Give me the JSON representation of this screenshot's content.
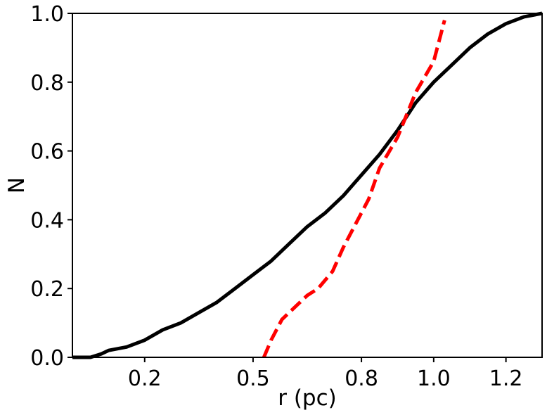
{
  "chart_data": {
    "type": "line",
    "title": "",
    "xlabel": "r (pc)",
    "ylabel": "N",
    "xlim": [
      0.0,
      1.3
    ],
    "ylim": [
      0.0,
      1.0
    ],
    "xticks": [
      0.2,
      0.5,
      0.8,
      1.0,
      1.2
    ],
    "xtick_labels": [
      "0.2",
      "0.5",
      "0.8",
      "1.0",
      "1.2"
    ],
    "yticks": [
      0.0,
      0.2,
      0.4,
      0.6,
      0.8,
      1.0
    ],
    "ytick_labels": [
      "0.0",
      "0.2",
      "0.4",
      "0.6",
      "0.8",
      "1.0"
    ],
    "grid": false,
    "legend": "none",
    "series": [
      {
        "style": "solid",
        "color": "#000000",
        "x": [
          0.0,
          0.05,
          0.08,
          0.1,
          0.15,
          0.2,
          0.25,
          0.3,
          0.35,
          0.4,
          0.45,
          0.5,
          0.55,
          0.6,
          0.65,
          0.7,
          0.75,
          0.8,
          0.85,
          0.9,
          0.95,
          1.0,
          1.05,
          1.1,
          1.15,
          1.2,
          1.25,
          1.3
        ],
        "y": [
          0.0,
          0.0,
          0.01,
          0.02,
          0.03,
          0.05,
          0.08,
          0.1,
          0.13,
          0.16,
          0.2,
          0.24,
          0.28,
          0.33,
          0.38,
          0.42,
          0.47,
          0.53,
          0.59,
          0.66,
          0.74,
          0.8,
          0.85,
          0.9,
          0.94,
          0.97,
          0.99,
          1.0
        ]
      },
      {
        "style": "dashed",
        "color": "#ff0000",
        "x": [
          0.53,
          0.55,
          0.58,
          0.62,
          0.65,
          0.68,
          0.72,
          0.75,
          0.78,
          0.82,
          0.85,
          0.9,
          0.95,
          1.0,
          1.03
        ],
        "y": [
          0.0,
          0.05,
          0.11,
          0.15,
          0.18,
          0.2,
          0.25,
          0.32,
          0.38,
          0.46,
          0.55,
          0.64,
          0.77,
          0.86,
          0.98
        ]
      }
    ]
  }
}
